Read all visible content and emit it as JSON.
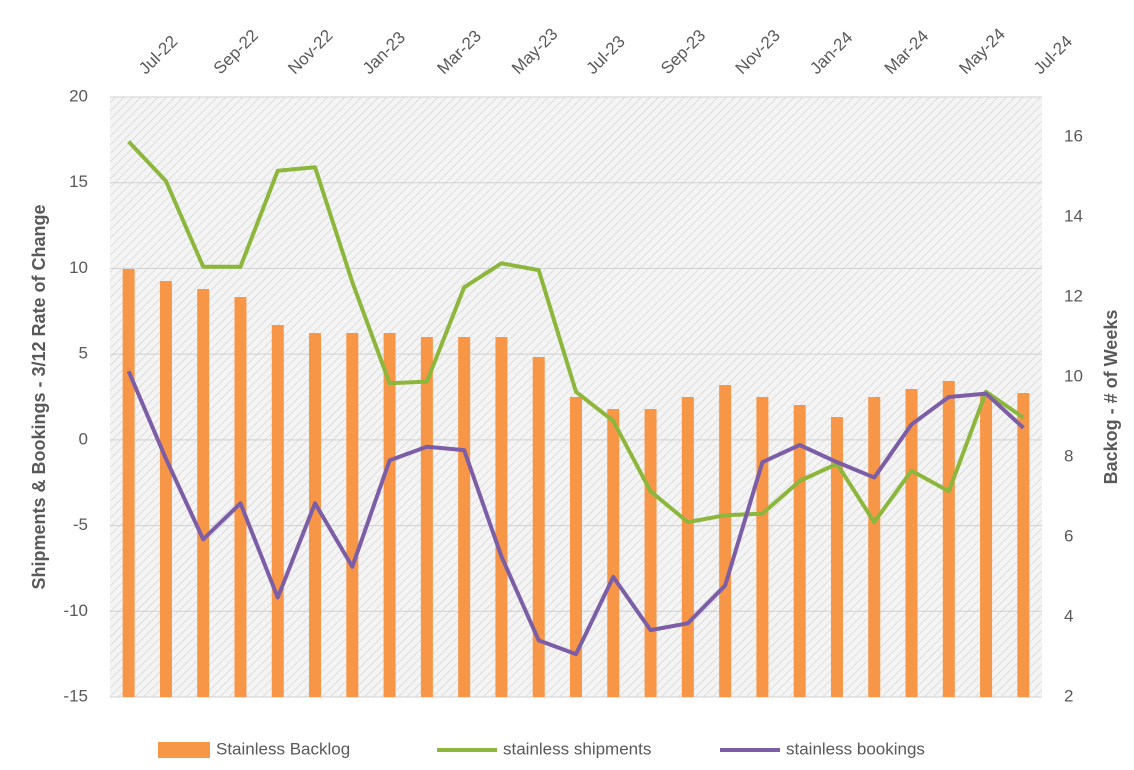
{
  "chart_data": {
    "type": "bar-line",
    "categories": [
      "Jul-22",
      null,
      "Sep-22",
      null,
      "Nov-22",
      null,
      "Jan-23",
      null,
      "Mar-23",
      null,
      "May-23",
      null,
      "Jul-23",
      null,
      "Sep-23",
      null,
      "Nov-23",
      null,
      "Jan-24",
      null,
      "Mar-24",
      null,
      "May-24",
      null,
      "Jul-24"
    ],
    "ylabel": "Shipments & Bookings - 3/12  Rate of Change",
    "y2label": "Backog - # of Weeks",
    "ylim": [
      -15,
      20
    ],
    "yticks": [
      -15,
      -10,
      -5,
      0,
      5,
      10,
      15,
      20
    ],
    "y2lim": [
      2,
      17
    ],
    "y2ticks": [
      2,
      4,
      6,
      8,
      10,
      12,
      14,
      16
    ],
    "grid": true,
    "legend": "bottom",
    "series": [
      {
        "name": "Stainless Backlog",
        "type": "bar",
        "axis": "y2",
        "color": "#f79646",
        "values": [
          12.7,
          12.4,
          12.2,
          12.0,
          11.3,
          11.1,
          11.1,
          11.1,
          11.0,
          11.0,
          11.0,
          10.5,
          9.5,
          9.2,
          9.2,
          9.5,
          9.8,
          9.5,
          9.3,
          9.0,
          9.5,
          9.7,
          9.9,
          9.6,
          9.6
        ]
      },
      {
        "name": "stainless shipments",
        "type": "line",
        "color": "#8db63c",
        "values": [
          17.4,
          15.1,
          10.1,
          10.1,
          15.7,
          15.9,
          9.2,
          3.3,
          3.4,
          8.9,
          10.3,
          9.9,
          2.8,
          1.1,
          -3.0,
          -4.8,
          -4.4,
          -4.3,
          -2.4,
          -1.4,
          -4.8,
          -1.8,
          -3.0,
          2.8,
          1.3
        ]
      },
      {
        "name": "stainless bookings",
        "type": "line",
        "color": "#7c5ea6",
        "values": [
          4.0,
          -1.1,
          -5.8,
          -3.7,
          -9.2,
          -3.7,
          -7.4,
          -1.2,
          -0.4,
          -0.6,
          -6.8,
          -11.7,
          -12.5,
          -8.0,
          -11.1,
          -10.7,
          -8.5,
          -1.3,
          -0.3,
          -1.3,
          -2.2,
          0.9,
          2.5,
          2.7,
          0.7
        ]
      }
    ]
  }
}
